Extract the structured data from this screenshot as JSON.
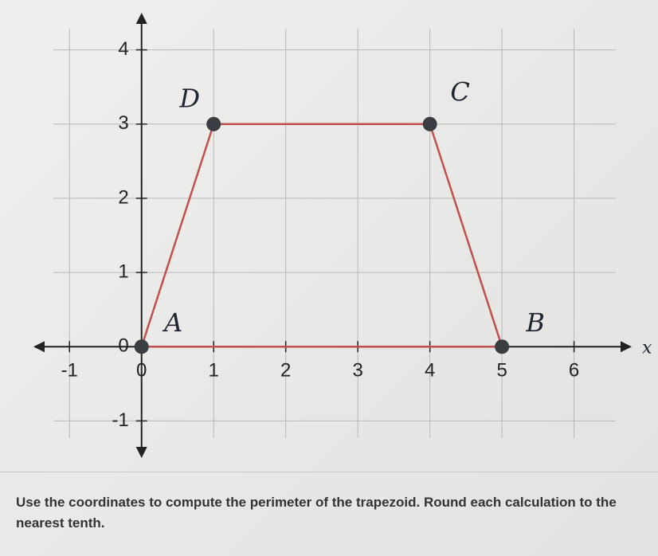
{
  "chart_data": {
    "type": "polygon",
    "x": [
      0,
      5,
      4,
      1
    ],
    "y": [
      0,
      0,
      3,
      3
    ],
    "point_labels": [
      "A",
      "B",
      "C",
      "D"
    ],
    "x_label": "x",
    "xlim": [
      -1.5,
      6.8
    ],
    "ylim": [
      -1.5,
      4.5
    ],
    "xticks": [
      -1,
      0,
      1,
      2,
      3,
      4,
      5,
      6
    ],
    "yticks": [
      -1,
      0,
      1,
      2,
      3,
      4
    ],
    "grid": true,
    "color": "#c0504d",
    "point_color": "#3a3d42"
  },
  "question": "Use the coordinates to compute the perimeter of the trapezoid. Round each calculation to the nearest tenth."
}
